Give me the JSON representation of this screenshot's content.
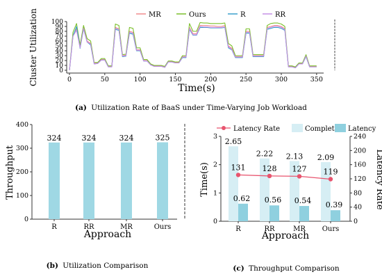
{
  "captions": {
    "a_label": "(a)",
    "a_text": "Utilization Rate of BaaS under Time-Varying Job Workload",
    "b_label": "(b)",
    "b_text": "Utilization Comparison",
    "c_label": "(c)",
    "c_text": "Throughput Comparison"
  },
  "colors": {
    "MR": "#f08a8e",
    "Ours": "#7bbf2a",
    "R": "#3aa0cc",
    "RR": "#c690e6",
    "bar": "#9fd8e4",
    "complete_bar": "#d6eef4",
    "latency_bar": "#8fd0df",
    "latency_rate_line": "#e8546e"
  },
  "chart_data": [
    {
      "type": "line",
      "panel": "a",
      "xlabel": "Time(s)",
      "ylabel": "Cluster Utilization",
      "xlim": [
        0,
        360
      ],
      "ylim": [
        0,
        100
      ],
      "xticks": [
        0,
        50,
        100,
        150,
        200,
        250,
        300,
        350
      ],
      "yticks": [
        0,
        10,
        20,
        30,
        40,
        50,
        60,
        70,
        80,
        90,
        100
      ],
      "legend_position": "top-center",
      "x": [
        0,
        5,
        10,
        15,
        20,
        25,
        30,
        35,
        40,
        45,
        50,
        55,
        60,
        65,
        70,
        75,
        80,
        85,
        90,
        95,
        100,
        105,
        110,
        115,
        120,
        125,
        130,
        135,
        140,
        145,
        150,
        155,
        160,
        165,
        170,
        175,
        180,
        185,
        190,
        195,
        200,
        205,
        210,
        215,
        220,
        225,
        230,
        235,
        240,
        245,
        250,
        255,
        260,
        265,
        270,
        275,
        280,
        285,
        290,
        295,
        300,
        305,
        310,
        315,
        320,
        325,
        330,
        335,
        340,
        345,
        350
      ],
      "series": [
        {
          "name": "MR",
          "values": [
            0,
            72,
            85,
            48,
            88,
            60,
            55,
            14,
            15,
            22,
            22,
            8,
            8,
            88,
            85,
            30,
            31,
            80,
            78,
            42,
            42,
            20,
            20,
            12,
            9,
            9,
            9,
            7,
            18,
            18,
            16,
            16,
            28,
            28,
            88,
            75,
            75,
            92,
            92,
            92,
            91,
            91,
            90,
            90,
            92,
            50,
            45,
            28,
            28,
            28,
            80,
            80,
            30,
            30,
            30,
            30,
            88,
            90,
            92,
            92,
            90,
            85,
            8,
            8,
            6,
            14,
            14,
            30,
            8,
            8,
            8
          ]
        },
        {
          "name": "Ours",
          "values": [
            0,
            78,
            96,
            52,
            92,
            65,
            60,
            16,
            16,
            24,
            24,
            9,
            9,
            95,
            92,
            32,
            33,
            88,
            86,
            46,
            46,
            22,
            22,
            13,
            10,
            10,
            10,
            8,
            19,
            19,
            17,
            17,
            30,
            30,
            96,
            80,
            80,
            98,
            97,
            97,
            96,
            96,
            96,
            96,
            97,
            55,
            50,
            30,
            30,
            30,
            85,
            85,
            32,
            32,
            32,
            32,
            92,
            96,
            97,
            97,
            95,
            90,
            9,
            9,
            7,
            15,
            15,
            32,
            9,
            9,
            9
          ]
        },
        {
          "name": "R",
          "values": [
            0,
            70,
            90,
            45,
            85,
            58,
            52,
            13,
            14,
            21,
            21,
            7,
            7,
            84,
            82,
            28,
            29,
            76,
            74,
            40,
            40,
            19,
            19,
            11,
            8,
            8,
            8,
            6,
            17,
            17,
            15,
            15,
            26,
            26,
            84,
            72,
            72,
            88,
            88,
            88,
            87,
            87,
            87,
            87,
            88,
            46,
            42,
            26,
            26,
            26,
            76,
            76,
            28,
            28,
            28,
            28,
            84,
            86,
            88,
            88,
            86,
            82,
            7,
            7,
            5,
            13,
            13,
            28,
            7,
            7,
            7
          ]
        },
        {
          "name": "RR",
          "values": [
            0,
            70,
            82,
            46,
            86,
            58,
            54,
            13,
            14,
            21,
            21,
            7,
            7,
            86,
            84,
            29,
            30,
            78,
            76,
            41,
            41,
            19,
            19,
            11,
            8,
            8,
            8,
            6,
            17,
            17,
            15,
            15,
            27,
            27,
            86,
            73,
            73,
            90,
            89,
            89,
            88,
            88,
            88,
            88,
            89,
            48,
            43,
            27,
            27,
            27,
            78,
            78,
            29,
            29,
            29,
            29,
            86,
            88,
            90,
            90,
            88,
            84,
            7,
            7,
            5,
            13,
            13,
            29,
            7,
            7,
            7
          ]
        }
      ]
    },
    {
      "type": "bar",
      "panel": "b",
      "xlabel": "Approach",
      "ylabel": "Throughput",
      "ylim": [
        0,
        400
      ],
      "yticks": [
        0,
        100,
        200,
        300,
        400
      ],
      "categories": [
        "R",
        "RR",
        "MR",
        "Ours"
      ],
      "values": [
        324,
        324,
        324,
        325
      ],
      "value_labels": [
        "324",
        "324",
        "324",
        "325"
      ]
    },
    {
      "type": "bar",
      "panel": "c",
      "xlabel": "Approach",
      "ylabel": "Time(s)",
      "y2label": "Latency Rate",
      "ylim": [
        0,
        3
      ],
      "yticks": [
        0,
        1,
        2,
        3
      ],
      "y2lim": [
        0,
        240
      ],
      "y2ticks": [
        0,
        40,
        80,
        120,
        160,
        200,
        240
      ],
      "categories": [
        "R",
        "RR",
        "MR",
        "Ours"
      ],
      "legend_position": "top",
      "series": [
        {
          "name": "Complete",
          "values": [
            2.65,
            2.22,
            2.13,
            2.09
          ],
          "labels": [
            "2.65",
            "2.22",
            "2.13",
            "2.09"
          ]
        },
        {
          "name": "Latency",
          "values": [
            0.62,
            0.56,
            0.54,
            0.39
          ],
          "labels": [
            "0.62",
            "0.56",
            "0.54",
            "0.39"
          ]
        },
        {
          "name": "Latency Rate",
          "axis": "right",
          "values": [
            131,
            128,
            127,
            119
          ],
          "labels": [
            "131",
            "128",
            "127",
            "119"
          ]
        }
      ]
    }
  ]
}
